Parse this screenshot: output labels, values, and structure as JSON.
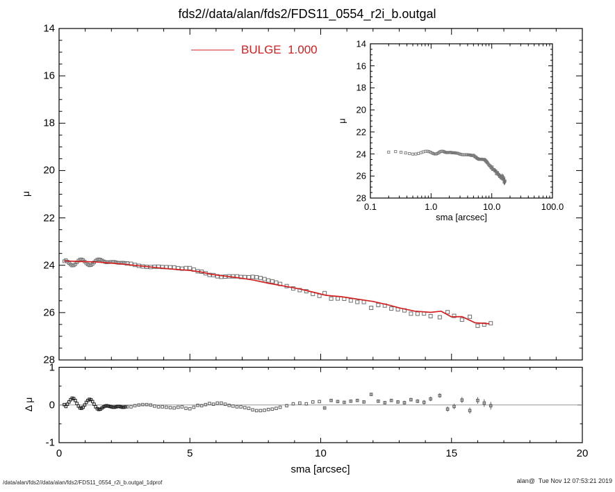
{
  "title": "fds2//data/alan/fds2/FDS11_0554_r2i_b.outgal",
  "legend": {
    "label": "BULGE  1.000",
    "color": "#d21f1f"
  },
  "footer": {
    "left": "/data/alan/fds2//data/alan/fds2/FDS11_0554_r2i_b.outgal_1dprof",
    "right": "alan@  Tue Nov 12 07:53:21 2019"
  },
  "colors": {
    "axis": "#000000",
    "model_line": "#d21f1f",
    "data_marker_edge": "#6e6e6e",
    "residual_marker_dark": "#1a1a1a",
    "residual_marker_gray": "#5a5a5a",
    "inset_marker_edge": "#787878",
    "zero_line": "#9a9a9a",
    "error_bar": "#606060"
  },
  "chart_data": {
    "type": "scatter",
    "panels": {
      "main": {
        "xlabel": "sma [arcsec]",
        "ylabel": "μ",
        "xlim": [
          0,
          20
        ],
        "ylim_top_to_bottom": [
          14,
          28
        ],
        "x_ticks": [
          0,
          5,
          10,
          15,
          20
        ],
        "x_tick_labels": [
          "0",
          "5",
          "10",
          "15",
          "20"
        ],
        "x_minor_step": 1,
        "y_ticks": [
          14,
          16,
          18,
          20,
          22,
          24,
          26,
          28
        ],
        "y_minor_step": 0.5,
        "grid": false,
        "legend_position": "top-left-inside"
      },
      "inset": {
        "xlabel": "sma [arcsec]",
        "ylabel": "μ",
        "xscale": "log",
        "xlim": [
          0.1,
          100.0
        ],
        "ylim_top_to_bottom": [
          14,
          28
        ],
        "x_ticks": [
          0.1,
          1.0,
          10.0,
          100.0
        ],
        "x_tick_labels": [
          "0.1",
          "1.0",
          "10.0",
          "100.0"
        ],
        "y_ticks": [
          14,
          16,
          18,
          20,
          22,
          24,
          26,
          28
        ],
        "y_minor_step": 0.5,
        "grid": false
      },
      "residual": {
        "xlabel": "sma [arcsec]",
        "ylabel": "Δ μ",
        "xlim": [
          0,
          20
        ],
        "ylim": [
          -1,
          1
        ],
        "x_ticks": [
          0,
          5,
          10,
          15,
          20
        ],
        "x_minor_step": 1,
        "y_ticks": [
          1,
          0,
          -1
        ],
        "y_tick_labels": [
          "1",
          "0",
          "-1"
        ],
        "y_minor_step": 0.5,
        "zero_line": true
      }
    },
    "series": [
      {
        "name": "BULGE model",
        "legend_label": "BULGE  1.000",
        "style": "line",
        "color": "#d21f1f",
        "points": [
          [
            0.2,
            23.82
          ],
          [
            0.8,
            23.84
          ],
          [
            1.4,
            23.86
          ],
          [
            2.0,
            23.91
          ],
          [
            2.6,
            23.97
          ],
          [
            3.2,
            24.04
          ],
          [
            3.8,
            24.11
          ],
          [
            4.4,
            24.17
          ],
          [
            5.0,
            24.22
          ],
          [
            5.4,
            24.28
          ],
          [
            5.8,
            24.38
          ],
          [
            6.2,
            24.44
          ],
          [
            6.8,
            24.52
          ],
          [
            7.4,
            24.62
          ],
          [
            8.0,
            24.76
          ],
          [
            8.6,
            24.88
          ],
          [
            9.2,
            25.0
          ],
          [
            9.8,
            25.16
          ],
          [
            10.2,
            25.27
          ],
          [
            10.8,
            25.33
          ],
          [
            11.4,
            25.43
          ],
          [
            12.0,
            25.53
          ],
          [
            12.6,
            25.68
          ],
          [
            13.0,
            25.8
          ],
          [
            13.6,
            25.94
          ],
          [
            14.2,
            25.99
          ],
          [
            14.6,
            25.94
          ],
          [
            15.0,
            26.18
          ],
          [
            15.4,
            26.17
          ],
          [
            15.9,
            26.43
          ],
          [
            16.45,
            26.47
          ]
        ]
      },
      {
        "name": "galaxy surface-brightness data",
        "style": "marker",
        "marker": "open-square",
        "points_rule": "mu(sma) = model_mu_interpolated(sma) + delta_mu ; delta_mu plotted in residual panel",
        "residual_points": [
          [
            0.2,
            0.01
          ],
          [
            0.26,
            -0.04
          ],
          [
            0.32,
            0.02
          ],
          [
            0.38,
            0.08
          ],
          [
            0.44,
            0.14
          ],
          [
            0.5,
            0.18
          ],
          [
            0.56,
            0.17
          ],
          [
            0.62,
            0.12
          ],
          [
            0.68,
            0.04
          ],
          [
            0.74,
            -0.03
          ],
          [
            0.8,
            -0.08
          ],
          [
            0.86,
            -0.09
          ],
          [
            0.92,
            -0.06
          ],
          [
            0.98,
            0.0
          ],
          [
            1.04,
            0.07
          ],
          [
            1.1,
            0.12
          ],
          [
            1.16,
            0.15
          ],
          [
            1.22,
            0.14
          ],
          [
            1.28,
            0.09
          ],
          [
            1.34,
            0.02
          ],
          [
            1.4,
            -0.05
          ],
          [
            1.46,
            -0.1
          ],
          [
            1.52,
            -0.12
          ],
          [
            1.58,
            -0.11
          ],
          [
            1.64,
            -0.08
          ],
          [
            1.7,
            -0.05
          ],
          [
            1.76,
            -0.03
          ],
          [
            1.82,
            -0.02
          ],
          [
            1.88,
            -0.03
          ],
          [
            1.94,
            -0.04
          ],
          [
            2.0,
            -0.05
          ],
          [
            2.06,
            -0.06
          ],
          [
            2.12,
            -0.06
          ],
          [
            2.18,
            -0.05
          ],
          [
            2.24,
            -0.04
          ],
          [
            2.3,
            -0.04
          ],
          [
            2.36,
            -0.05
          ],
          [
            2.42,
            -0.06
          ],
          [
            2.48,
            -0.06
          ],
          [
            2.54,
            -0.05
          ],
          [
            2.6,
            -0.05
          ],
          [
            2.75,
            -0.05
          ],
          [
            2.9,
            -0.02
          ],
          [
            3.05,
            0.0
          ],
          [
            3.2,
            0.01
          ],
          [
            3.35,
            0.01
          ],
          [
            3.5,
            0.0
          ],
          [
            3.65,
            -0.03
          ],
          [
            3.8,
            -0.05
          ],
          [
            3.95,
            -0.05
          ],
          [
            4.1,
            -0.06
          ],
          [
            4.25,
            -0.07
          ],
          [
            4.4,
            -0.08
          ],
          [
            4.55,
            -0.06
          ],
          [
            4.7,
            -0.05
          ],
          [
            4.85,
            -0.09
          ],
          [
            5.0,
            -0.1
          ],
          [
            5.15,
            -0.06
          ],
          [
            5.3,
            -0.01
          ],
          [
            5.45,
            -0.02
          ],
          [
            5.6,
            0.01
          ],
          [
            5.75,
            0.04
          ],
          [
            5.9,
            0.02
          ],
          [
            6.05,
            0.05
          ],
          [
            6.2,
            0.05
          ],
          [
            6.35,
            0.02
          ],
          [
            6.5,
            -0.01
          ],
          [
            6.65,
            -0.03
          ],
          [
            6.8,
            -0.05
          ],
          [
            6.95,
            -0.05
          ],
          [
            7.1,
            -0.07
          ],
          [
            7.25,
            -0.09
          ],
          [
            7.4,
            -0.13
          ],
          [
            7.55,
            -0.15
          ],
          [
            7.7,
            -0.15
          ],
          [
            7.85,
            -0.14
          ],
          [
            8.0,
            -0.12
          ],
          [
            8.15,
            -0.11
          ],
          [
            8.3,
            -0.09
          ],
          [
            8.45,
            -0.06
          ],
          [
            8.7,
            -0.02
          ],
          [
            8.95,
            0.03
          ],
          [
            9.2,
            0.05
          ],
          [
            9.45,
            0.03
          ],
          [
            9.7,
            0.08
          ],
          [
            9.95,
            0.09
          ],
          [
            10.15,
            -0.08,
            0.03
          ],
          [
            10.4,
            0.12,
            0.03
          ],
          [
            10.65,
            0.09,
            0.03
          ],
          [
            10.9,
            0.07,
            0.03
          ],
          [
            11.15,
            0.1,
            0.03
          ],
          [
            11.4,
            0.12,
            0.03
          ],
          [
            11.65,
            0.08,
            0.03
          ],
          [
            11.93,
            0.28,
            0.04
          ],
          [
            12.2,
            0.1,
            0.04
          ],
          [
            12.45,
            0.06,
            0.04
          ],
          [
            12.7,
            0.12,
            0.04
          ],
          [
            12.95,
            0.08,
            0.04
          ],
          [
            13.2,
            0.06,
            0.05
          ],
          [
            13.45,
            0.14,
            0.05
          ],
          [
            13.7,
            0.1,
            0.05
          ],
          [
            13.95,
            0.07,
            0.06
          ],
          [
            14.2,
            0.16,
            0.06
          ],
          [
            14.55,
            0.25,
            0.06
          ],
          [
            14.85,
            -0.11,
            0.07
          ],
          [
            15.1,
            -0.04,
            0.07
          ],
          [
            15.4,
            0.13,
            0.08
          ],
          [
            15.7,
            -0.15,
            0.08
          ],
          [
            16.0,
            0.12,
            0.09
          ],
          [
            16.25,
            0.05,
            0.1
          ],
          [
            16.5,
            -0.02,
            0.1
          ]
        ]
      }
    ]
  }
}
